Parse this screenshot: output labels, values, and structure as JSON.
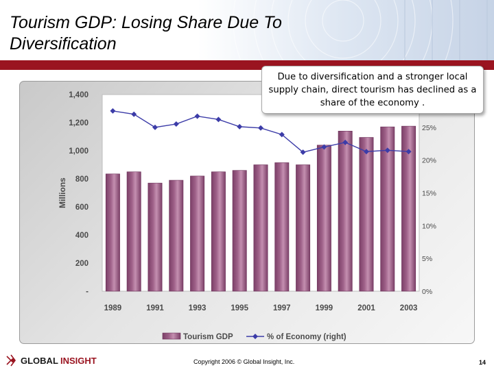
{
  "slide": {
    "title_line1": "Tourism GDP:  Losing Share Due To",
    "title_line2": "Diversification",
    "callout": "Due to diversification and a stronger local supply chain, direct tourism has declined as a share of the economy .",
    "copyright": "Copyright 2006 © Global Insight, Inc.",
    "page_number": "14",
    "logo": {
      "word1": "GLOBAL",
      "word2": "INSIGHT"
    }
  },
  "colors": {
    "bar_fill": "#9e6088",
    "line": "#3c3ca8",
    "header_rule": "#9a1420"
  },
  "chart_data": {
    "type": "bar",
    "years": [
      1989,
      1990,
      1991,
      1992,
      1993,
      1994,
      1995,
      1996,
      1997,
      1998,
      1999,
      2000,
      2001,
      2002,
      2003
    ],
    "x_tick_labels": [
      "1989",
      "1991",
      "1993",
      "1995",
      "1997",
      "1999",
      "2001",
      "2003"
    ],
    "ylabel": "Millions",
    "ylim": [
      0,
      1400
    ],
    "y_tick_labels": [
      "-",
      "200",
      "400",
      "600",
      "800",
      "1,000",
      "1,200",
      "1,400"
    ],
    "y2lim": [
      0,
      0.3
    ],
    "y2_tick_labels": [
      "0%",
      "5%",
      "10%",
      "15%",
      "20%",
      "25%"
    ],
    "grid": false,
    "legend_position": "bottom",
    "series": [
      {
        "name": "Tourism GDP",
        "type": "bar",
        "axis": "left",
        "values": [
          835,
          850,
          770,
          790,
          820,
          850,
          860,
          900,
          915,
          900,
          1040,
          1140,
          1095,
          1170,
          1175
        ]
      },
      {
        "name": "% of Economy (right)",
        "type": "line",
        "axis": "right",
        "values": [
          0.275,
          0.27,
          0.25,
          0.255,
          0.267,
          0.262,
          0.251,
          0.249,
          0.239,
          0.212,
          0.22,
          0.227,
          0.213,
          0.215,
          0.213
        ]
      }
    ]
  }
}
